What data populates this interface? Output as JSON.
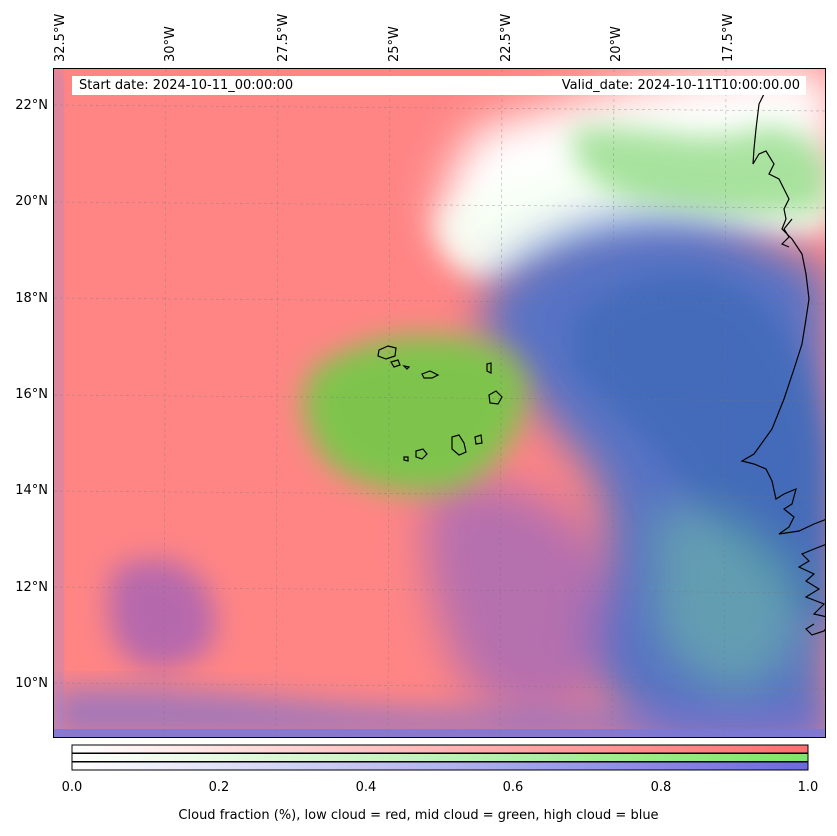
{
  "map": {
    "start_date": "Start date: 2024-10-11_00:00:00",
    "valid_date": "Valid_date: 2024-10-11T10:00:00.00",
    "lon_labels": [
      "32.5°W",
      "30°W",
      "27.5°W",
      "25°W",
      "22.5°W",
      "20°W",
      "17.5°W"
    ],
    "lat_labels": [
      "22°N",
      "20°N",
      "18°N",
      "16°N",
      "14°N",
      "12°N",
      "10°N"
    ],
    "lon_range": [
      -32.5,
      -15.5
    ],
    "lat_range": [
      8.8,
      22.8
    ],
    "gridlines": true,
    "layers": {
      "low_cloud_color": "#ff8080",
      "mid_cloud_color": "#80e060",
      "high_cloud_color": "#5070d0",
      "coastline_color": "#000000"
    }
  },
  "colorbar": {
    "tick_labels": [
      "0.0",
      "0.2",
      "0.4",
      "0.6",
      "0.8",
      "1.0"
    ],
    "range": [
      0,
      1
    ],
    "caption": "Cloud fraction (%), low cloud = red, mid cloud = green, high cloud = blue",
    "colors": {
      "red": "#ff6e6e",
      "green": "#7ee66a",
      "blue": "#6a6ae0"
    }
  }
}
